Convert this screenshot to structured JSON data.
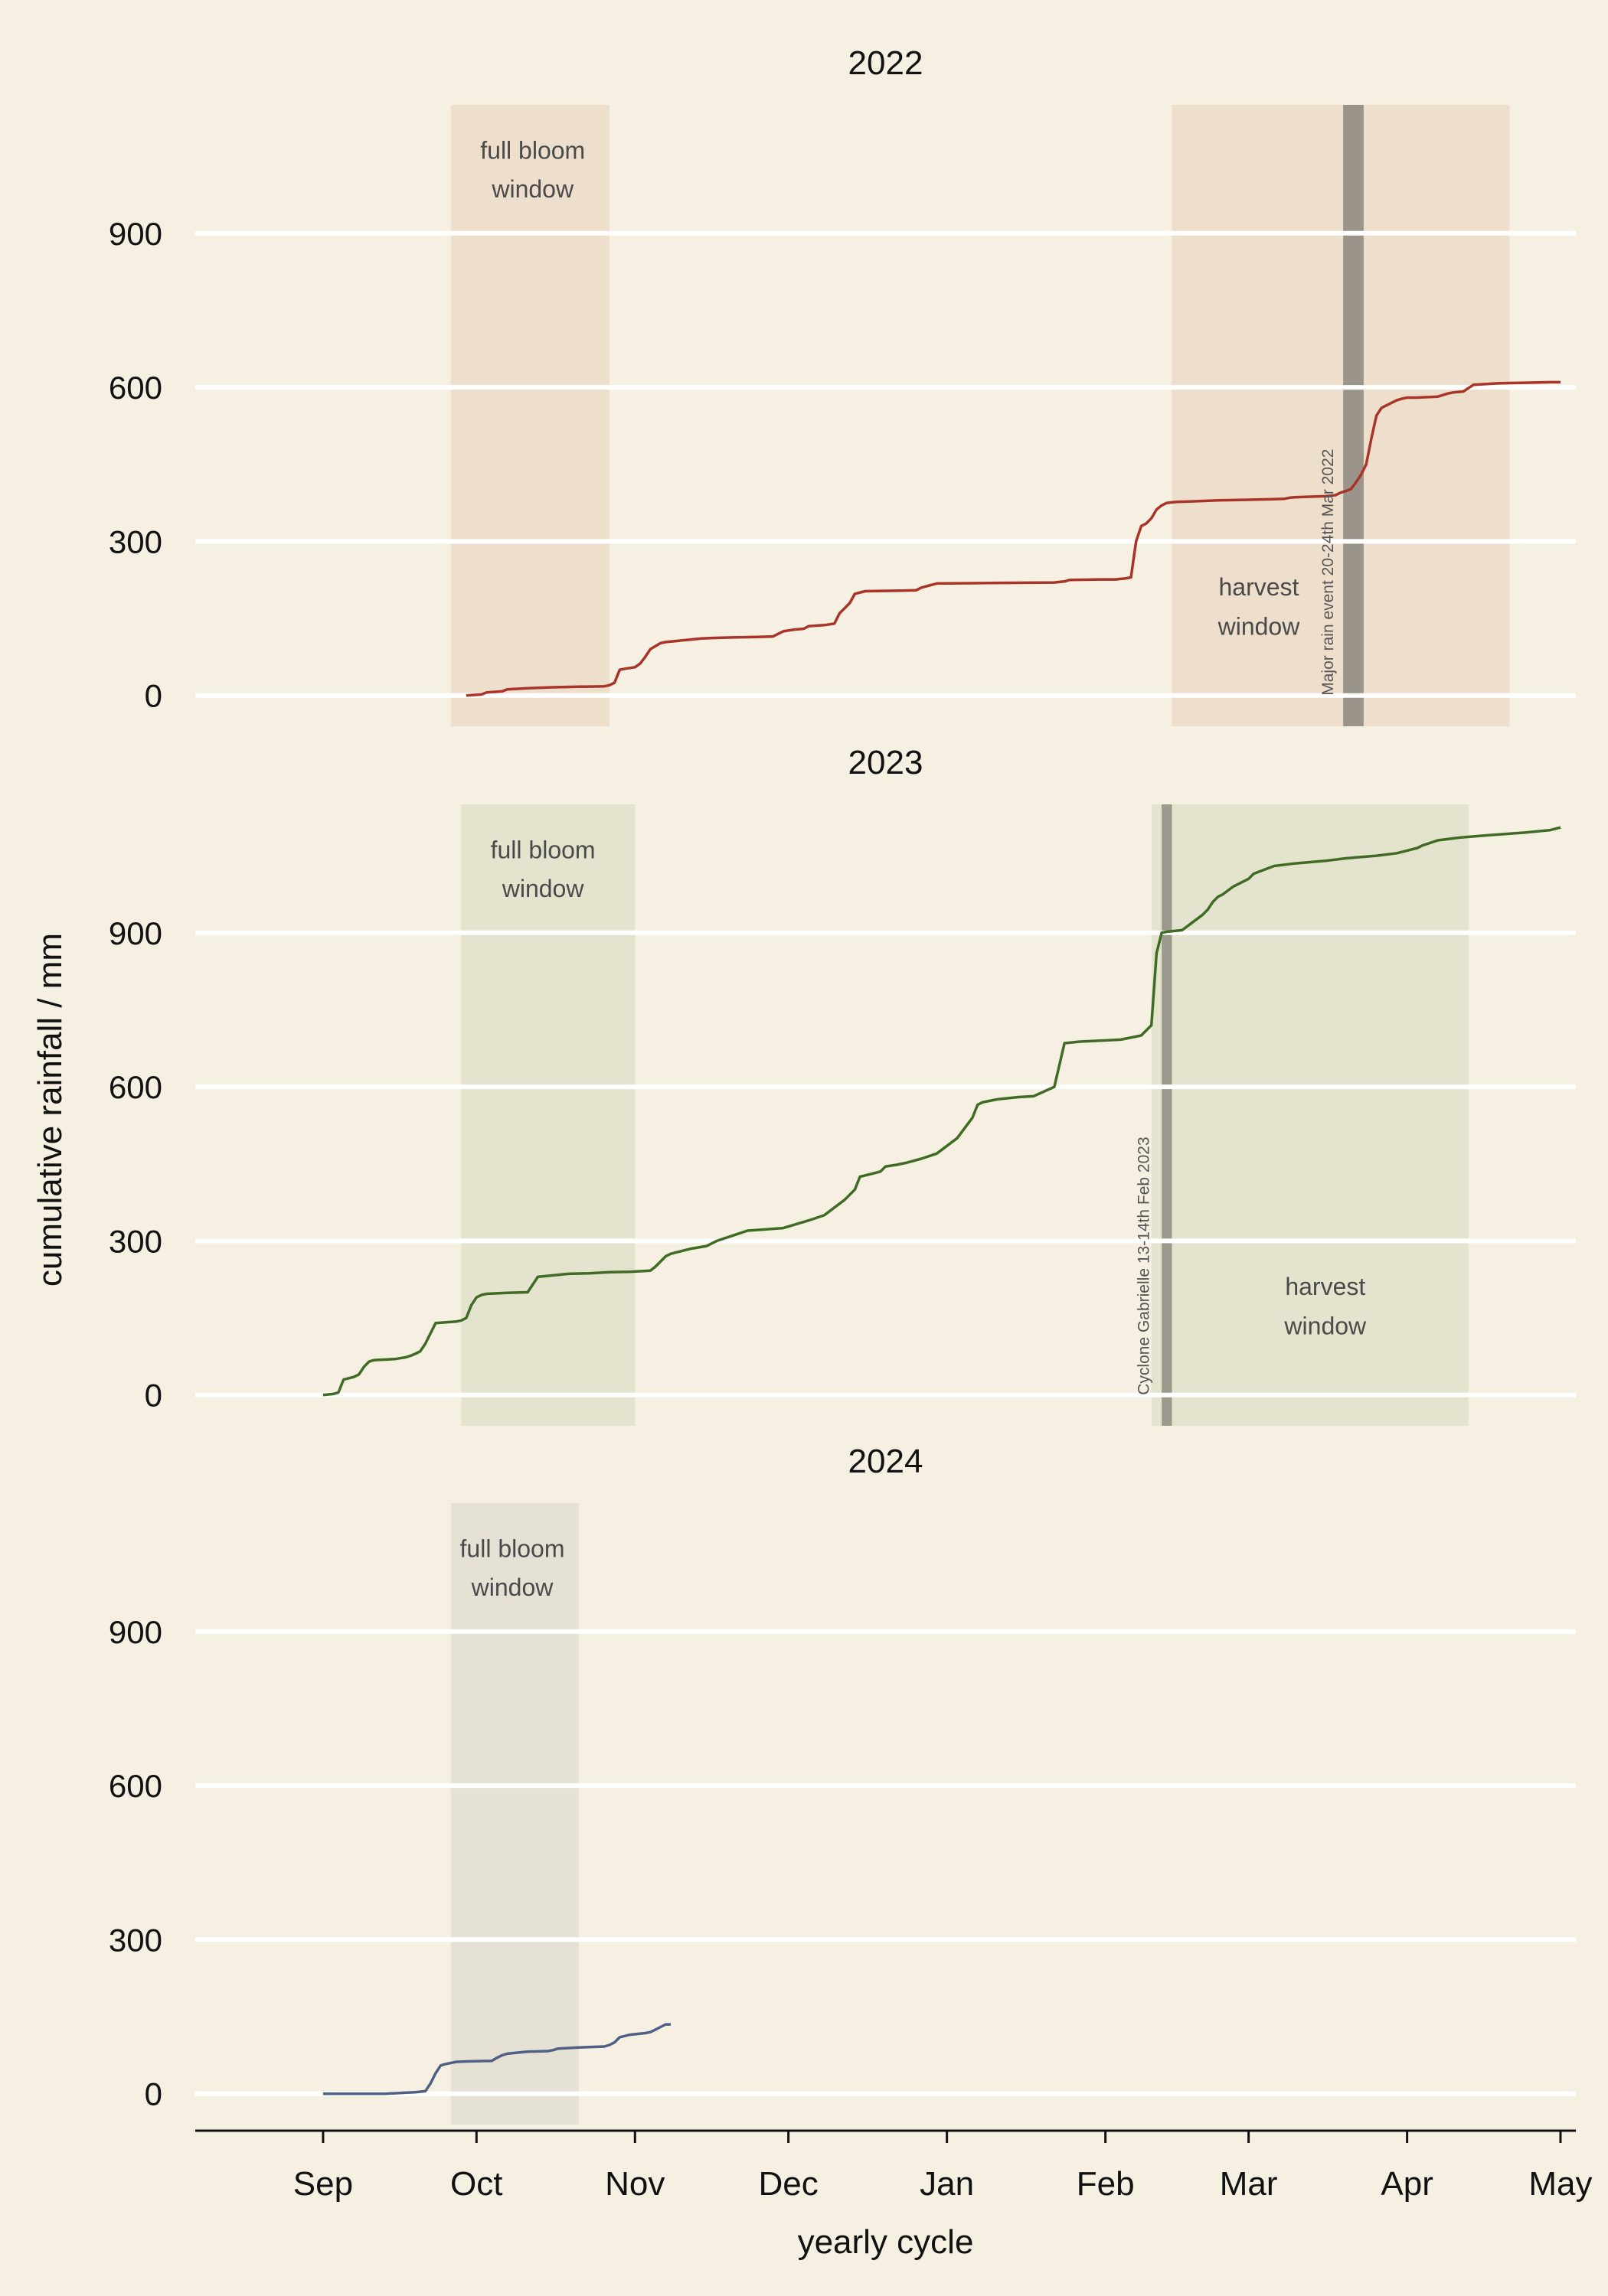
{
  "chart_data": {
    "type": "line",
    "ylabel": "cumulative rainfall / mm",
    "xlabel": "yearly cycle",
    "x_axis": {
      "unit": "days since 1 Sep",
      "range": [
        -25,
        245
      ],
      "ticks": [
        {
          "label": "Sep",
          "day": 0
        },
        {
          "label": "Oct",
          "day": 30
        },
        {
          "label": "Nov",
          "day": 61
        },
        {
          "label": "Dec",
          "day": 91
        },
        {
          "label": "Jan",
          "day": 122
        },
        {
          "label": "Feb",
          "day": 153
        },
        {
          "label": "Mar",
          "day": 181
        },
        {
          "label": "Apr",
          "day": 212
        },
        {
          "label": "May",
          "day": 242
        }
      ]
    },
    "y_axis": {
      "range": [
        -60,
        1150
      ],
      "ticks": [
        0,
        300,
        600,
        900
      ],
      "gridlines": true
    },
    "panels": [
      {
        "title": "2022",
        "color": "#a8342a",
        "shade_color": "#eedfcc",
        "band_label_color": "#4a4a4a",
        "bands": [
          {
            "label_lines": [
              "full bloom",
              "window"
            ],
            "start": 25,
            "end": 56,
            "label_day": 41,
            "label_y": [
              1045,
              970
            ]
          },
          {
            "label_lines": [
              "harvest",
              "window"
            ],
            "start": 166,
            "end": 232,
            "label_day": 183,
            "label_y": [
              195,
              118
            ]
          }
        ],
        "event": {
          "label": "Major rain event 20-24th Mar 2022",
          "start": 199.5,
          "end": 203.5,
          "color": "#9b948a",
          "label_day": 197.5,
          "label_y": 0
        },
        "series": [
          {
            "x": [
              28,
              31,
              32,
              35,
              36,
              38,
              40,
              42,
              45,
              50,
              55,
              56,
              57,
              58,
              59,
              61,
              62,
              63,
              64,
              66,
              67,
              68,
              69,
              70,
              71,
              72,
              73,
              74,
              76,
              80,
              85,
              88,
              89,
              90,
              92,
              94,
              95,
              98,
              100,
              101,
              102,
              103,
              104,
              106,
              113,
              116,
              117,
              120,
              130,
              143,
              144,
              145,
              146,
              152,
              155,
              156,
              157,
              158,
              159,
              160,
              161,
              162,
              163,
              164,
              165,
              166,
              167,
              170,
              175,
              180,
              185,
              188,
              189,
              190,
              193,
              196,
              197,
              198,
              199,
              200,
              201,
              202,
              203,
              204,
              205,
              206,
              207,
              208,
              209,
              210,
              211,
              212,
              214,
              218,
              219,
              220,
              221,
              223,
              225,
              230,
              235,
              240,
              242
            ],
            "y": [
              0,
              2,
              6,
              8,
              12,
              13,
              14,
              15,
              16,
              17,
              18,
              20,
              25,
              50,
              52,
              55,
              62,
              75,
              90,
              102,
              104,
              105,
              106,
              107,
              108,
              109,
              110,
              111,
              112,
              113,
              114,
              115,
              120,
              125,
              128,
              130,
              135,
              137,
              140,
              160,
              170,
              180,
              198,
              203,
              204,
              205,
              210,
              218,
              219,
              220,
              221,
              222,
              225,
              226,
              226,
              227,
              228,
              230,
              300,
              330,
              335,
              345,
              362,
              370,
              375,
              376,
              377,
              378,
              380,
              381,
              382,
              383,
              385,
              386,
              387,
              388,
              389,
              390,
              395,
              398,
              402,
              415,
              430,
              450,
              500,
              545,
              560,
              565,
              570,
              575,
              578,
              580,
              580,
              582,
              585,
              588,
              590,
              592,
              605,
              608,
              609,
              610,
              610
            ]
          }
        ]
      },
      {
        "title": "2023",
        "color": "#3f6b25",
        "shade_color": "#e4e4ce",
        "band_label_color": "#4a4a4a",
        "bands": [
          {
            "label_lines": [
              "full bloom",
              "window"
            ],
            "start": 27,
            "end": 61,
            "label_day": 43,
            "label_y": [
              1045,
              970
            ]
          },
          {
            "label_lines": [
              "harvest",
              "window"
            ],
            "start": 162,
            "end": 224,
            "label_day": 196,
            "label_y": [
              195,
              118
            ]
          }
        ],
        "event": {
          "label": "Cyclone Gabrielle 13-14th Feb 2023",
          "start": 164,
          "end": 166,
          "color": "#9b9a8c",
          "label_day": 161.5,
          "label_y": 0
        },
        "series": [
          {
            "x": [
              0,
              2,
              3,
              4,
              6,
              7,
              8,
              9,
              10,
              14,
              16,
              17,
              18,
              19,
              20,
              22,
              26,
              27,
              28,
              29,
              30,
              31,
              32,
              34,
              36,
              40,
              42,
              44,
              46,
              47,
              48,
              52,
              54,
              56,
              60,
              64,
              65,
              67,
              68,
              70,
              72,
              75,
              77,
              80,
              83,
              86,
              90,
              95,
              98,
              100,
              102,
              104,
              105,
              107,
              109,
              110,
              112,
              114,
              117,
              120,
              124,
              127,
              128,
              129,
              130,
              131,
              132,
              136,
              139,
              143,
              145,
              146,
              148,
              152,
              156,
              160,
              162,
              163,
              164,
              165,
              168,
              170,
              172,
              173,
              174,
              175,
              176,
              178,
              180,
              181,
              182,
              186,
              190,
              196,
              200,
              206,
              210,
              212,
              214,
              215,
              218,
              222,
              228,
              235,
              240,
              242
            ],
            "y": [
              0,
              2,
              5,
              30,
              35,
              40,
              55,
              65,
              68,
              70,
              73,
              76,
              80,
              85,
              100,
              140,
              143,
              145,
              150,
              175,
              190,
              195,
              197,
              198,
              199,
              200,
              230,
              232,
              234,
              235,
              236,
              237,
              238,
              239,
              240,
              242,
              250,
              270,
              275,
              280,
              285,
              290,
              300,
              310,
              320,
              322,
              325,
              340,
              350,
              365,
              380,
              400,
              425,
              430,
              435,
              445,
              448,
              452,
              460,
              470,
              500,
              540,
              565,
              570,
              572,
              574,
              576,
              580,
              582,
              600,
              685,
              686,
              688,
              690,
              692,
              700,
              720,
              860,
              900,
              902,
              905,
              920,
              935,
              945,
              960,
              970,
              975,
              990,
              1000,
              1005,
              1015,
              1030,
              1035,
              1040,
              1045,
              1050,
              1055,
              1060,
              1065,
              1070,
              1080,
              1085,
              1090,
              1095,
              1100,
              1105
            ]
          }
        ]
      },
      {
        "title": "2024",
        "color": "#4f5f85",
        "shade_color": "#e6e1d5",
        "band_label_color": "#4a4a4a",
        "bands": [
          {
            "label_lines": [
              "full bloom",
              "window"
            ],
            "start": 25,
            "end": 50,
            "label_day": 37,
            "label_y": [
              1045,
              970
            ]
          }
        ],
        "event": null,
        "series": [
          {
            "x": [
              0,
              6,
              10,
              12,
              14,
              16,
              18,
              20,
              21,
              22,
              23,
              24,
              25,
              26,
              28,
              33,
              34,
              35,
              36,
              38,
              40,
              44,
              45,
              46,
              50,
              55,
              56,
              57,
              58,
              60,
              63,
              64,
              65,
              66,
              67,
              68
            ],
            "y": [
              0,
              0,
              0,
              0,
              1,
              2,
              3,
              5,
              20,
              40,
              55,
              58,
              60,
              62,
              63,
              64,
              70,
              75,
              78,
              80,
              82,
              83,
              85,
              88,
              90,
              92,
              95,
              100,
              110,
              115,
              118,
              120,
              125,
              130,
              135,
              135
            ]
          }
        ]
      }
    ]
  }
}
